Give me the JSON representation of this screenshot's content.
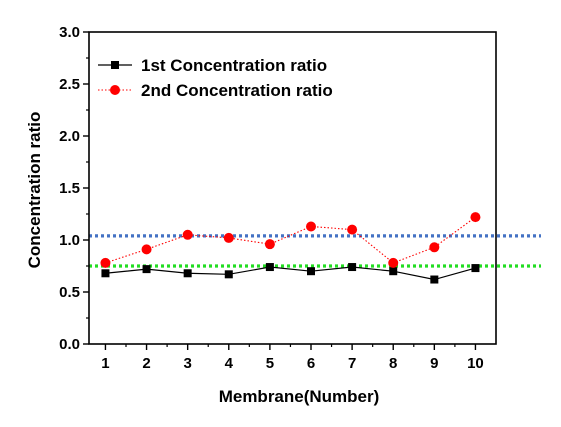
{
  "chart_data": {
    "type": "line",
    "xlabel": "Membrane(Number)",
    "ylabel": "Concentration ratio",
    "x": [
      1,
      2,
      3,
      4,
      5,
      6,
      7,
      8,
      9,
      10
    ],
    "x_ticks": [
      "1",
      "2",
      "3",
      "4",
      "5",
      "6",
      "7",
      "8",
      "9",
      "10"
    ],
    "xlim": [
      0.6,
      10.5
    ],
    "ylim": [
      0.0,
      3.0
    ],
    "y_ticks": [
      "0.0",
      "0.5",
      "1.0",
      "1.5",
      "2.0",
      "2.5",
      "3.0"
    ],
    "grid": false,
    "legend_position": "top-left",
    "series": [
      {
        "name": "1st Concentration ratio",
        "values": [
          0.68,
          0.72,
          0.68,
          0.67,
          0.74,
          0.7,
          0.74,
          0.7,
          0.62,
          0.73
        ],
        "color": "#000000",
        "marker": "square",
        "line": "solid"
      },
      {
        "name": "2nd Concentration ratio",
        "values": [
          0.78,
          0.91,
          1.05,
          1.02,
          0.96,
          1.13,
          1.1,
          0.78,
          0.93,
          1.22
        ],
        "color": "#ff0000",
        "marker": "circle",
        "line": "dotted"
      }
    ],
    "reference_lines": [
      {
        "y": 1.04,
        "color": "#4472c4",
        "style": "dotted"
      },
      {
        "y": 0.75,
        "color": "#22dd22",
        "style": "dotted"
      }
    ]
  }
}
